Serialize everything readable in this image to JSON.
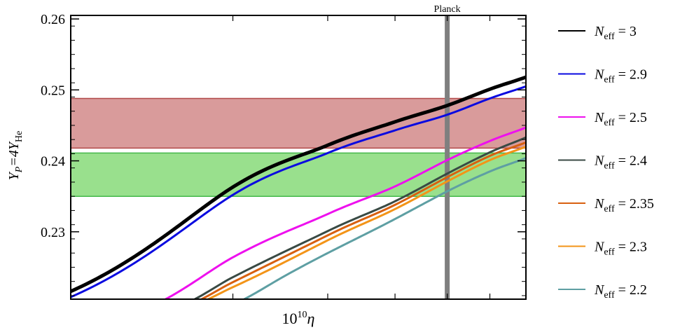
{
  "chart_data": {
    "type": "line",
    "title": "",
    "xlabel_prefix": "10",
    "xlabel_exp": "10",
    "xlabel_var": "η",
    "ylabel_main": "Y",
    "ylabel_sub1": "P",
    "ylabel_mid": "=4Y",
    "ylabel_sub2": "He",
    "x_scale": "log",
    "xlim": [
      1.0,
      7.0
    ],
    "ylim": [
      0.2205,
      0.2605
    ],
    "yticks": [
      0.23,
      0.24,
      0.25,
      0.26
    ],
    "ytick_labels": [
      "0.23",
      "0.24",
      "0.25",
      "0.26"
    ],
    "bands": [
      {
        "ymin": 0.2418,
        "ymax": 0.2488,
        "fill": "#d99b9b",
        "edge": "#b24a4a"
      },
      {
        "ymin": 0.235,
        "ymax": 0.2411,
        "fill": "#99e08d",
        "edge": "#44b84a"
      }
    ],
    "vline": {
      "x": 5.0,
      "label": "Planck",
      "color": "#7f7f7f"
    },
    "series": [
      {
        "name_sub": "eff",
        "value": "3",
        "color": "#000000",
        "width": 5,
        "x": [
          1.0,
          2.0,
          3.0,
          4.0,
          5.0,
          6.0,
          7.0
        ],
        "y": [
          0.2216,
          0.2363,
          0.2422,
          0.2455,
          0.2478,
          0.2501,
          0.2518
        ]
      },
      {
        "name_sub": "eff",
        "value": "2.9",
        "color": "#0a0ae0",
        "width": 3,
        "x": [
          1.0,
          2.0,
          3.0,
          4.0,
          5.0,
          6.0,
          7.0
        ],
        "y": [
          0.2208,
          0.2352,
          0.2411,
          0.2443,
          0.2465,
          0.2488,
          0.2505
        ]
      },
      {
        "name_sub": "eff",
        "value": "2.5",
        "color": "#ee10ee",
        "width": 3,
        "x": [
          1.5,
          2.0,
          3.0,
          4.0,
          5.0,
          6.0,
          7.0
        ],
        "y": [
          0.2205,
          0.2264,
          0.2325,
          0.2364,
          0.2401,
          0.2428,
          0.2447
        ]
      },
      {
        "name_sub": "eff",
        "value": "2.4",
        "color": "#394a44",
        "width": 3,
        "x": [
          1.7,
          2.0,
          3.0,
          4.0,
          5.0,
          6.0,
          7.0
        ],
        "y": [
          0.2205,
          0.2236,
          0.2301,
          0.2343,
          0.2382,
          0.2412,
          0.2433
        ]
      },
      {
        "name_sub": "eff",
        "value": "2.35",
        "color": "#d86010",
        "width": 3,
        "x": [
          1.75,
          2.0,
          3.0,
          4.0,
          5.0,
          6.0,
          7.0
        ],
        "y": [
          0.2205,
          0.2229,
          0.2295,
          0.2338,
          0.2377,
          0.2407,
          0.2426
        ]
      },
      {
        "name_sub": "eff",
        "value": "2.3",
        "color": "#f39418",
        "width": 3,
        "x": [
          1.8,
          2.0,
          3.0,
          4.0,
          5.0,
          6.0,
          7.0
        ],
        "y": [
          0.2205,
          0.2222,
          0.2288,
          0.2332,
          0.2371,
          0.2401,
          0.242
        ]
      },
      {
        "name_sub": "eff",
        "value": "2.2",
        "color": "#5e9fa3",
        "width": 3,
        "x": [
          2.1,
          2.5,
          3.0,
          4.0,
          5.0,
          6.0,
          7.0
        ],
        "y": [
          0.2205,
          0.2238,
          0.227,
          0.2318,
          0.2357,
          0.2385,
          0.2404
        ]
      }
    ],
    "legend_symbol": "N",
    "legend_eq": " = ",
    "legend_position": "right"
  }
}
